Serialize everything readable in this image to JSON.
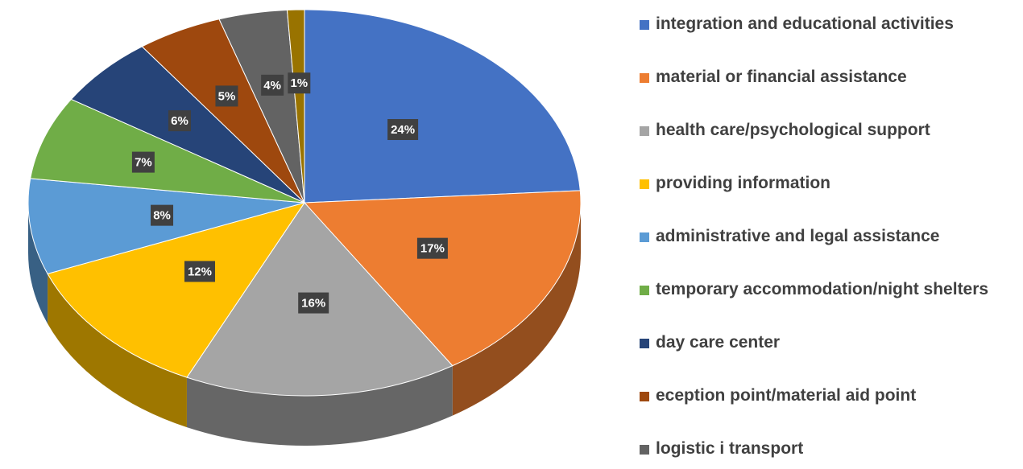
{
  "chart_data": {
    "type": "pie",
    "categories": [
      "integration and educational activities",
      "material or financial assistance",
      "health care/psychological support",
      "providing information",
      "administrative and legal assistance",
      "temporary accommodation/night shelters",
      "day care center",
      "eception point/material aid point",
      "logistic i transport",
      null
    ],
    "values": [
      24,
      17,
      16,
      12,
      8,
      7,
      6,
      5,
      4,
      1
    ],
    "value_labels": [
      "24%",
      "17%",
      "16%",
      "12%",
      "8%",
      "7%",
      "6%",
      "5%",
      "4%",
      "1%"
    ],
    "colors": [
      "#4472c4",
      "#ed7d31",
      "#a5a5a5",
      "#ffc000",
      "#5b9bd5",
      "#70ad47",
      "#264478",
      "#9e480e",
      "#636363",
      "#997300"
    ],
    "legend": "right"
  }
}
